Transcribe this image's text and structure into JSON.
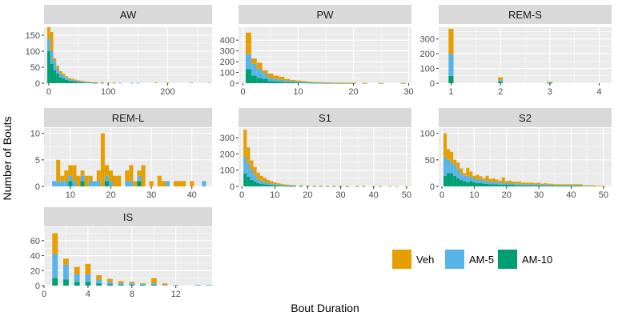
{
  "figure": {
    "xlabel": "Bout Duration",
    "ylabel": "Number of Bouts"
  },
  "colors": {
    "panel_bg": "#ebebeb",
    "strip_bg": "#d9d9d9",
    "grid": "#ffffff"
  },
  "legend": {
    "entries": [
      {
        "name": "Veh",
        "color": "#E69F00"
      },
      {
        "name": "AM-5",
        "color": "#56B4E9"
      },
      {
        "name": "AM-10",
        "color": "#009E73"
      }
    ]
  },
  "chart_data": [
    {
      "type": "bar",
      "stacked": true,
      "title": "AW",
      "xlim": [
        -8,
        275
      ],
      "ylim": [
        0,
        175
      ],
      "xticks": [
        0,
        100,
        200
      ],
      "yticks": [
        0,
        50,
        100,
        150
      ],
      "binwidth": 5,
      "x": [
        0,
        5,
        10,
        15,
        20,
        25,
        30,
        35,
        40,
        45,
        50,
        55,
        60,
        65,
        70,
        75,
        80,
        90,
        100,
        110,
        120,
        140,
        150,
        180,
        200,
        240,
        270
      ],
      "series": [
        {
          "name": "AM-10",
          "values": [
            100,
            60,
            40,
            30,
            18,
            14,
            10,
            8,
            6,
            5,
            4,
            3,
            2,
            2,
            2,
            1,
            1,
            1,
            0,
            0,
            0,
            0,
            0,
            0,
            0,
            0,
            0
          ]
        },
        {
          "name": "AM-5",
          "values": [
            40,
            40,
            28,
            15,
            12,
            10,
            7,
            5,
            4,
            3,
            3,
            2,
            2,
            1,
            1,
            1,
            1,
            1,
            1,
            1,
            1,
            1,
            1,
            0,
            0,
            2,
            2
          ]
        },
        {
          "name": "Veh",
          "values": [
            35,
            60,
            10,
            10,
            8,
            6,
            5,
            3,
            4,
            3,
            2,
            3,
            2,
            2,
            1,
            1,
            1,
            1,
            1,
            1,
            0,
            0,
            0,
            2,
            2,
            0,
            0
          ]
        }
      ]
    },
    {
      "type": "bar",
      "stacked": true,
      "title": "PW",
      "xlim": [
        -0.8,
        30.5
      ],
      "ylim": [
        0,
        520
      ],
      "xticks": [
        0,
        10,
        20,
        30
      ],
      "yticks": [
        0,
        100,
        200,
        300,
        400
      ],
      "binwidth": 1,
      "x": [
        1,
        2,
        3,
        4,
        5,
        6,
        7,
        8,
        9,
        10,
        11,
        12,
        13,
        14,
        15,
        16,
        17,
        18,
        19,
        20,
        22,
        25,
        29
      ],
      "series": [
        {
          "name": "AM-10",
          "values": [
            130,
            70,
            50,
            40,
            20,
            15,
            12,
            10,
            8,
            6,
            5,
            4,
            3,
            3,
            2,
            2,
            1,
            1,
            1,
            1,
            0,
            0,
            0
          ]
        },
        {
          "name": "AM-5",
          "values": [
            140,
            110,
            80,
            50,
            30,
            25,
            20,
            15,
            10,
            10,
            7,
            5,
            4,
            3,
            3,
            2,
            2,
            2,
            1,
            1,
            1,
            1,
            1
          ]
        },
        {
          "name": "Veh",
          "values": [
            200,
            50,
            60,
            30,
            40,
            30,
            28,
            15,
            12,
            9,
            8,
            5,
            5,
            4,
            3,
            3,
            2,
            2,
            2,
            2,
            2,
            2,
            2
          ]
        }
      ]
    },
    {
      "type": "bar",
      "stacked": true,
      "title": "REM-S",
      "xlim": [
        0.75,
        4.25
      ],
      "ylim": [
        0,
        380
      ],
      "xticks": [
        1,
        2,
        3,
        4
      ],
      "yticks": [
        0,
        100,
        200,
        300
      ],
      "binwidth": 0.1,
      "x": [
        1,
        2,
        3
      ],
      "series": [
        {
          "name": "AM-10",
          "values": [
            50,
            10,
            2
          ]
        },
        {
          "name": "AM-5",
          "values": [
            150,
            10,
            5
          ]
        },
        {
          "name": "Veh",
          "values": [
            170,
            20,
            3
          ]
        }
      ]
    },
    {
      "type": "bar",
      "stacked": true,
      "title": "REM-L",
      "xlim": [
        3.5,
        45
      ],
      "ylim": [
        0,
        11
      ],
      "xticks": [
        10,
        20,
        30,
        40
      ],
      "yticks": [
        0,
        5,
        10
      ],
      "binwidth": 1,
      "x": [
        6,
        7,
        8,
        9,
        10,
        11,
        12,
        13,
        14,
        15,
        16,
        17,
        18,
        19,
        20,
        21,
        22,
        24,
        25,
        26,
        27,
        28,
        30,
        32,
        33,
        34,
        36,
        37,
        38,
        40,
        43
      ],
      "series": [
        {
          "name": "AM-10",
          "values": [
            0,
            0,
            0,
            0,
            1,
            0,
            0,
            1,
            0,
            0,
            0,
            0,
            0,
            1,
            0,
            0,
            0,
            0,
            0,
            0,
            1,
            0,
            0,
            0,
            0,
            0,
            0,
            0,
            0,
            0,
            0
          ]
        },
        {
          "name": "AM-5",
          "values": [
            1,
            1,
            1,
            1,
            1,
            1,
            0,
            1,
            0,
            1,
            1,
            1,
            0,
            1,
            1,
            0,
            0,
            1,
            1,
            0,
            1,
            0,
            0,
            0,
            0,
            1,
            0,
            0,
            0,
            0,
            1
          ]
        },
        {
          "name": "Veh",
          "values": [
            0,
            4,
            1,
            2,
            2,
            3,
            2,
            1,
            2,
            1,
            0,
            2,
            10,
            2,
            2,
            2,
            2,
            2,
            3,
            1,
            1,
            4,
            1,
            2,
            1,
            0,
            1,
            1,
            1,
            1,
            0
          ]
        }
      ]
    },
    {
      "type": "bar",
      "stacked": true,
      "title": "S1",
      "xlim": [
        -1,
        51.5
      ],
      "ylim": [
        0,
        360
      ],
      "xticks": [
        0,
        10,
        20,
        30,
        40,
        50
      ],
      "yticks": [
        0,
        100,
        200,
        300
      ],
      "binwidth": 1,
      "x": [
        1,
        2,
        3,
        4,
        5,
        6,
        7,
        8,
        9,
        10,
        11,
        12,
        13,
        14,
        15,
        16,
        18,
        20,
        22,
        24,
        26,
        28,
        30,
        32,
        35,
        37,
        40,
        42,
        45,
        47,
        50
      ],
      "series": [
        {
          "name": "AM-10",
          "values": [
            80,
            60,
            40,
            30,
            20,
            15,
            12,
            10,
            8,
            6,
            5,
            4,
            3,
            3,
            2,
            2,
            2,
            2,
            1,
            1,
            1,
            1,
            1,
            1,
            1,
            0,
            0,
            0,
            0,
            0,
            0
          ]
        },
        {
          "name": "AM-5",
          "values": [
            100,
            80,
            60,
            40,
            25,
            20,
            15,
            12,
            10,
            8,
            6,
            5,
            4,
            3,
            3,
            2,
            2,
            1,
            1,
            1,
            1,
            1,
            1,
            1,
            1,
            1,
            1,
            1,
            0,
            0,
            0
          ]
        },
        {
          "name": "Veh",
          "values": [
            170,
            100,
            60,
            50,
            40,
            30,
            25,
            18,
            14,
            11,
            9,
            7,
            5,
            5,
            4,
            4,
            3,
            3,
            2,
            2,
            2,
            2,
            2,
            2,
            1,
            2,
            1,
            1,
            2,
            1,
            1
          ]
        }
      ]
    },
    {
      "type": "bar",
      "stacked": true,
      "title": "S2",
      "xlim": [
        -1,
        52.5
      ],
      "ylim": [
        0,
        110
      ],
      "xticks": [
        0,
        10,
        20,
        30,
        40,
        50
      ],
      "yticks": [
        0,
        50,
        100
      ],
      "binwidth": 1,
      "x": [
        1,
        2,
        3,
        4,
        5,
        6,
        7,
        8,
        9,
        10,
        11,
        12,
        13,
        14,
        15,
        16,
        17,
        18,
        19,
        20,
        21,
        22,
        23,
        24,
        25,
        26,
        27,
        28,
        29,
        30,
        31,
        32,
        33,
        34,
        35,
        36,
        37,
        38,
        39,
        40,
        41,
        42,
        43,
        44,
        45,
        46,
        47,
        48,
        49,
        50
      ],
      "series": [
        {
          "name": "AM-10",
          "values": [
            20,
            25,
            25,
            20,
            15,
            12,
            10,
            8,
            10,
            8,
            6,
            6,
            5,
            5,
            4,
            4,
            4,
            3,
            3,
            3,
            3,
            3,
            2,
            2,
            2,
            2,
            2,
            2,
            2,
            2,
            1,
            1,
            1,
            1,
            1,
            1,
            1,
            1,
            1,
            1,
            1,
            1,
            1,
            0,
            0,
            0,
            0,
            0,
            0,
            0
          ]
        },
        {
          "name": "AM-5",
          "values": [
            35,
            25,
            20,
            20,
            18,
            12,
            10,
            12,
            8,
            7,
            6,
            8,
            6,
            5,
            5,
            5,
            4,
            4,
            4,
            3,
            3,
            3,
            3,
            3,
            2,
            2,
            2,
            2,
            2,
            2,
            2,
            2,
            2,
            2,
            1,
            1,
            1,
            1,
            1,
            1,
            1,
            1,
            1,
            1,
            1,
            1,
            1,
            0,
            0,
            0
          ]
        },
        {
          "name": "Veh",
          "values": [
            45,
            20,
            20,
            10,
            12,
            10,
            5,
            15,
            10,
            5,
            10,
            5,
            4,
            10,
            5,
            6,
            5,
            4,
            10,
            4,
            5,
            3,
            4,
            4,
            3,
            3,
            3,
            3,
            2,
            3,
            2,
            3,
            2,
            2,
            2,
            2,
            2,
            2,
            2,
            2,
            2,
            2,
            2,
            1,
            1,
            1,
            1,
            1,
            1,
            1
          ]
        }
      ]
    },
    {
      "type": "bar",
      "stacked": true,
      "title": "IS",
      "xlim": [
        0,
        15.3
      ],
      "ylim": [
        0,
        78
      ],
      "xticks": [
        0,
        4,
        8,
        12
      ],
      "yticks": [
        0,
        20,
        40,
        60
      ],
      "binwidth": 0.5,
      "x": [
        1,
        2,
        3,
        4,
        5,
        6,
        7,
        8,
        9,
        10,
        11,
        12,
        14,
        15
      ],
      "series": [
        {
          "name": "AM-10",
          "values": [
            10,
            8,
            5,
            5,
            3,
            2,
            1,
            1,
            1,
            1,
            0,
            0,
            0,
            0
          ]
        },
        {
          "name": "AM-5",
          "values": [
            32,
            20,
            10,
            10,
            5,
            3,
            2,
            2,
            1,
            2,
            1,
            1,
            1,
            1
          ]
        },
        {
          "name": "Veh",
          "values": [
            28,
            8,
            10,
            14,
            6,
            4,
            3,
            2,
            1,
            7,
            2,
            0,
            0,
            0
          ]
        }
      ]
    }
  ]
}
